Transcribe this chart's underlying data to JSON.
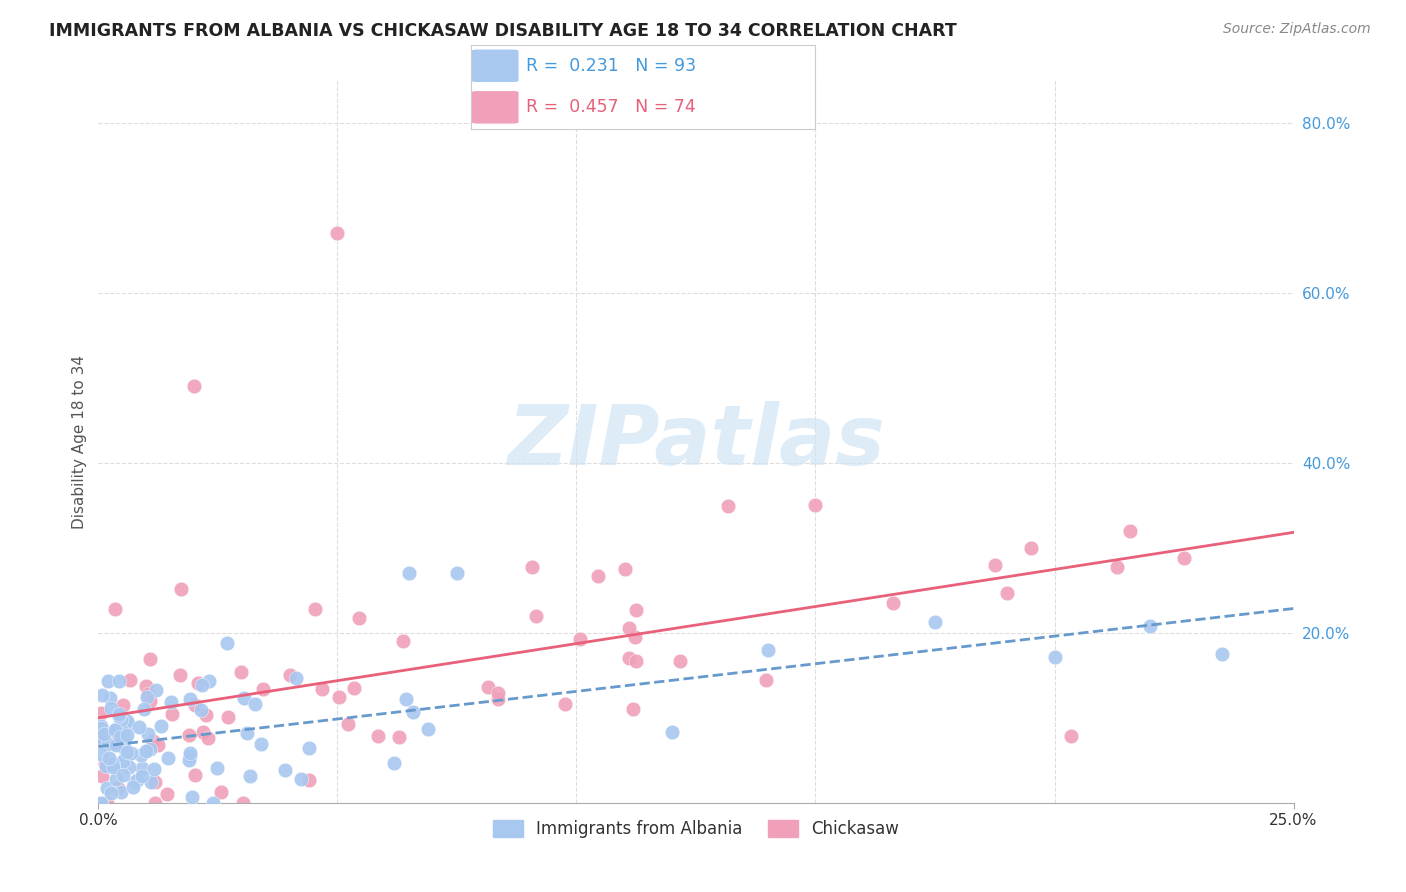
{
  "title": "IMMIGRANTS FROM ALBANIA VS CHICKASAW DISABILITY AGE 18 TO 34 CORRELATION CHART",
  "source": "Source: ZipAtlas.com",
  "ylabel": "Disability Age 18 to 34",
  "xlim": [
    0.0,
    0.25
  ],
  "ylim": [
    0.0,
    0.85
  ],
  "r1": 0.231,
  "n1": 93,
  "r2": 0.457,
  "n2": 74,
  "color_albania": "#a8c8f0",
  "color_chickasaw": "#f0a0b8",
  "color_line_albania": "#6699cc",
  "color_line_chickasaw": "#e8607a",
  "watermark_color": "#d0e4f5",
  "title_color": "#222222",
  "source_color": "#888888",
  "ylabel_color": "#555555",
  "ytick_color": "#4499dd",
  "xtick_color": "#333333",
  "grid_color": "#dddddd",
  "legend_border_color": "#cccccc",
  "legend_text_color_1": "#4499dd",
  "legend_text_color_2": "#e8607a"
}
